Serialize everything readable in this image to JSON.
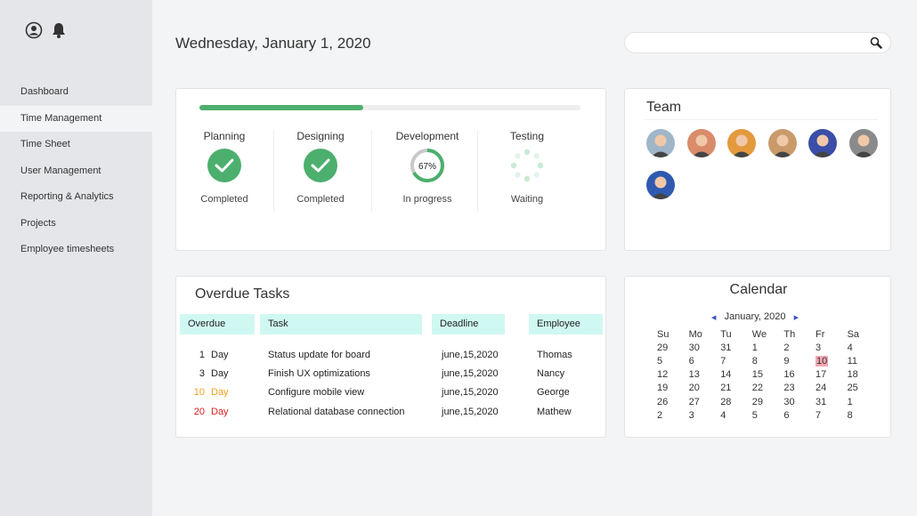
{
  "sidebar": {
    "icons": [
      "user-circle-icon",
      "bell-icon"
    ],
    "items": [
      {
        "label": "Dashboard",
        "active": false
      },
      {
        "label": "Time Management",
        "active": true
      },
      {
        "label": "Time Sheet",
        "active": false
      },
      {
        "label": "User Management",
        "active": false
      },
      {
        "label": "Reporting & Analytics",
        "active": false
      },
      {
        "label": "Projects",
        "active": false
      },
      {
        "label": "Employee timesheets",
        "active": false
      }
    ]
  },
  "header": {
    "date": "Wednesday, January 1, 2020",
    "search": {
      "placeholder": "",
      "value": "",
      "icon": "search-icon"
    }
  },
  "progress": {
    "overall_fraction": 0.43,
    "phases": [
      {
        "name": "Planning",
        "status": "Completed",
        "state": "done"
      },
      {
        "name": "Designing",
        "status": "Completed",
        "state": "done"
      },
      {
        "name": "Development",
        "status": "In progress",
        "state": "progress",
        "percent_label": "67%",
        "percent": 67
      },
      {
        "name": "Testing",
        "status": "Waiting",
        "state": "waiting"
      }
    ],
    "colors": {
      "green": "#4caf6d",
      "track": "#eeeeee"
    }
  },
  "team": {
    "title": "Team",
    "members": [
      {
        "name": "avatar-1",
        "color": "#9fb6c9"
      },
      {
        "name": "avatar-2",
        "color": "#d98b6a"
      },
      {
        "name": "avatar-3",
        "color": "#e39a3d"
      },
      {
        "name": "avatar-4",
        "color": "#c99a6a"
      },
      {
        "name": "avatar-5",
        "color": "#3a4ea8"
      },
      {
        "name": "avatar-6",
        "color": "#8a8a8a"
      },
      {
        "name": "avatar-7",
        "color": "#2f5ab0"
      }
    ]
  },
  "tasks": {
    "title": "Overdue Tasks",
    "columns": [
      "Overdue",
      "Task",
      "Deadline",
      "Employee"
    ],
    "rows": [
      {
        "days": "1",
        "unit": "Day",
        "task": "Status update for board",
        "deadline": "june,15,2020",
        "employee": "Thomas",
        "color": "#222222"
      },
      {
        "days": "3",
        "unit": "Day",
        "task": "Finish UX optimizations",
        "deadline": "june,15,2020",
        "employee": "Nancy",
        "color": "#222222"
      },
      {
        "days": "10",
        "unit": "Day",
        "task": "Configure mobile view",
        "deadline": "june,15,2020",
        "employee": "George",
        "color": "#f0a020"
      },
      {
        "days": "20",
        "unit": "Day",
        "task": "Relational database connection",
        "deadline": "june,15,2020",
        "employee": "Mathew",
        "color": "#e02020"
      }
    ]
  },
  "calendar": {
    "title": "Calendar",
    "month_label": "January, 2020",
    "prev_icon": "◀",
    "next_icon": "▶",
    "weekdays": [
      "Su",
      "Mo",
      "Tu",
      "We",
      "Th",
      "Fr",
      "Sa"
    ],
    "weeks": [
      [
        "29",
        "30",
        "31",
        "1",
        "2",
        "3",
        "4"
      ],
      [
        "5",
        "6",
        "7",
        "8",
        "9",
        "10",
        "11"
      ],
      [
        "12",
        "13",
        "14",
        "15",
        "16",
        "17",
        "18"
      ],
      [
        "19",
        "20",
        "21",
        "22",
        "23",
        "24",
        "25"
      ],
      [
        "26",
        "27",
        "28",
        "29",
        "30",
        "31",
        "1"
      ],
      [
        "2",
        "3",
        "4",
        "5",
        "6",
        "7",
        "8"
      ]
    ],
    "highlight": "10",
    "highlight_color": "#f2a8b3"
  }
}
